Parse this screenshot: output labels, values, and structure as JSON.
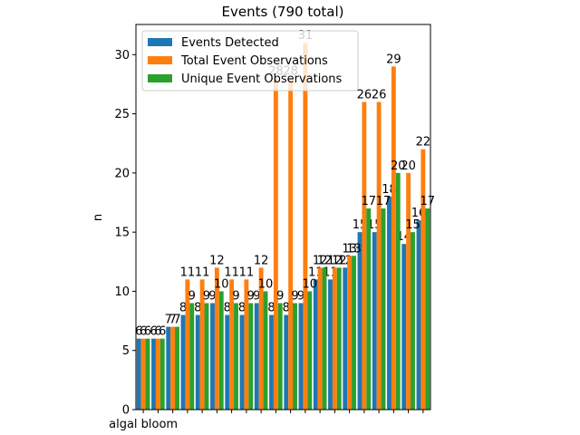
{
  "chart_data": {
    "type": "bar",
    "title": "Events (790 total)",
    "y_label": "n",
    "categories": [
      "algal bloom",
      null,
      null,
      null,
      null,
      null,
      null,
      null,
      null,
      null,
      null,
      null,
      null,
      null,
      null,
      null,
      null,
      null,
      null,
      null
    ],
    "series": [
      {
        "name": "Events Detected",
        "color": "#1f77b4",
        "values": [
          6,
          6,
          7,
          8,
          8,
          9,
          8,
          8,
          9,
          8,
          8,
          9,
          11,
          11,
          12,
          15,
          15,
          18,
          14,
          16
        ]
      },
      {
        "name": "Total Event Observations",
        "color": "#ff7f0e",
        "values": [
          6,
          6,
          7,
          11,
          11,
          12,
          11,
          11,
          12,
          28,
          28,
          31,
          12,
          12,
          13,
          26,
          26,
          29,
          20,
          22
        ]
      },
      {
        "name": "Unique Event Observations",
        "color": "#2ca02c",
        "values": [
          6,
          6,
          7,
          9,
          9,
          10,
          9,
          9,
          10,
          9,
          9,
          10,
          12,
          12,
          13,
          17,
          17,
          20,
          15,
          17
        ]
      }
    ],
    "ylim": [
      0,
      32.55
    ],
    "yticks": [
      0,
      5,
      10,
      15,
      20,
      25,
      30
    ],
    "legend": "upper left"
  }
}
